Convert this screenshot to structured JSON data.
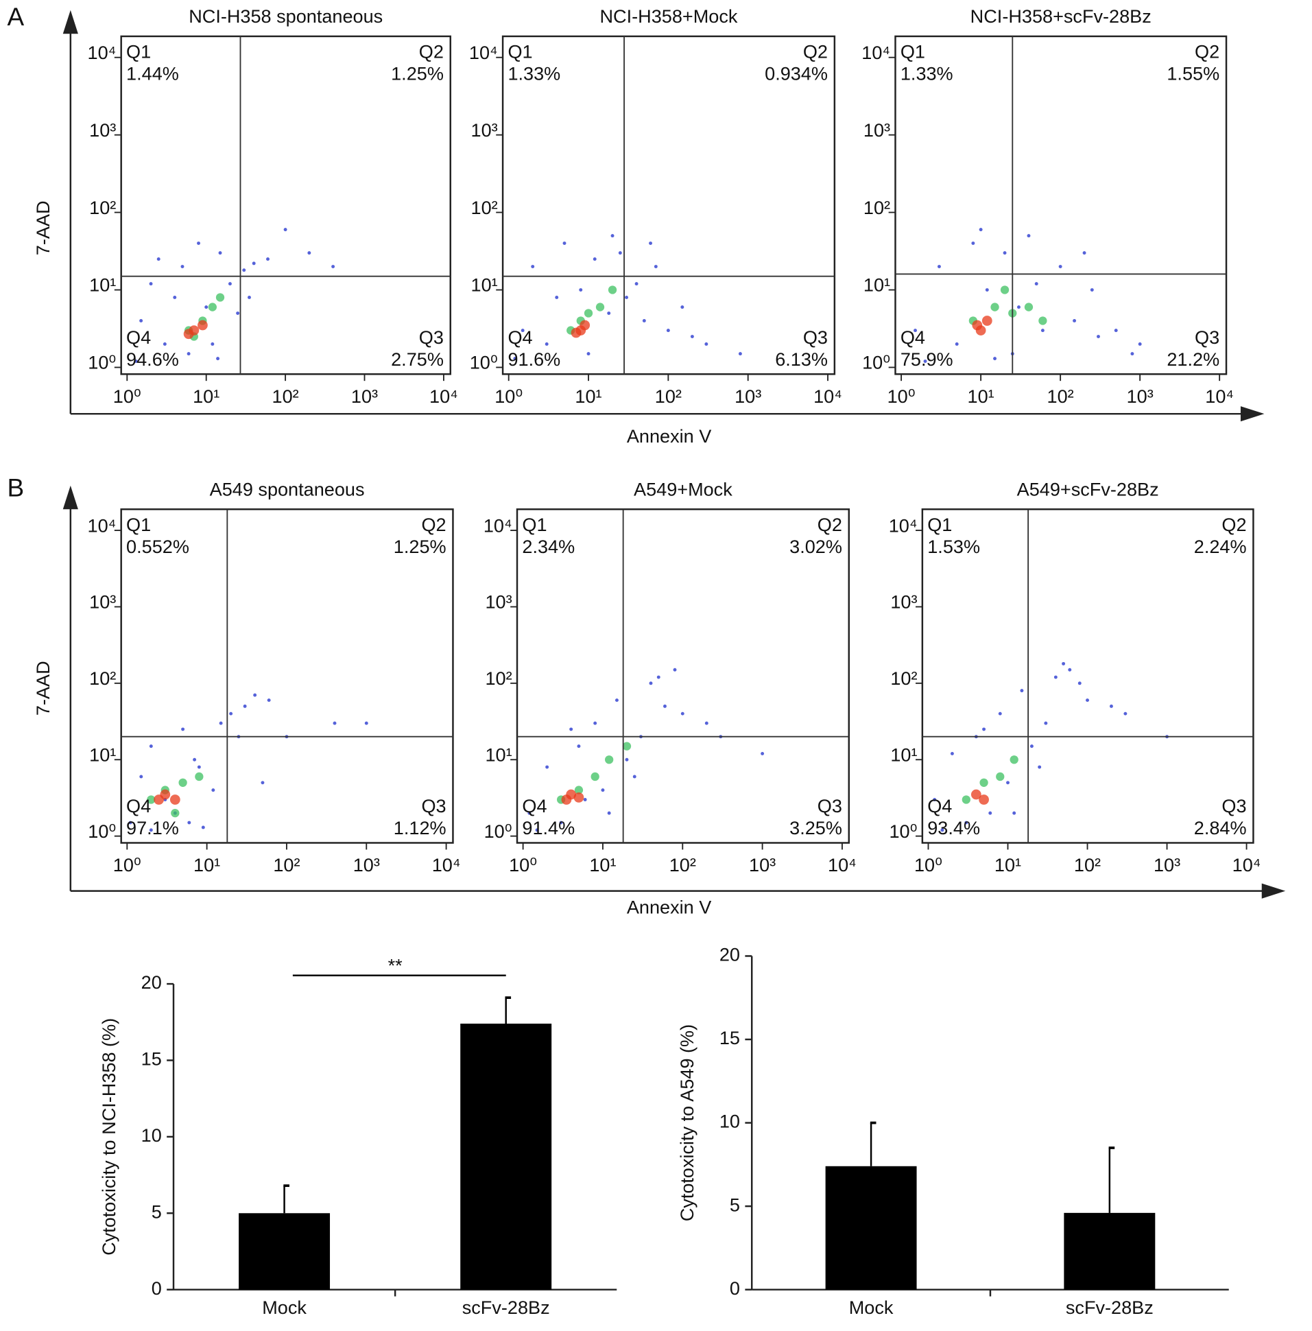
{
  "panels": [
    {
      "label": "A",
      "x_label": "Annexin V",
      "y_label": "7-AAD"
    },
    {
      "label": "B",
      "x_label": "Annexin V",
      "y_label": "7-AAD"
    }
  ],
  "chart_data": [
    {
      "type": "scatter",
      "title": "NCI-H358 spontaneous",
      "xscale": "log",
      "yscale": "log",
      "xlim": [
        1,
        10000
      ],
      "ylim": [
        1,
        10000
      ],
      "xticks": [
        {
          "value": 1,
          "label": "10⁰"
        },
        {
          "value": 10,
          "label": "10¹"
        },
        {
          "value": 100,
          "label": "10²"
        },
        {
          "value": 1000,
          "label": "10³"
        },
        {
          "value": 10000,
          "label": "10⁴"
        }
      ],
      "yticks": [
        {
          "value": 1,
          "label": "10⁰"
        },
        {
          "value": 10,
          "label": "10¹"
        },
        {
          "value": 100,
          "label": "10²"
        },
        {
          "value": 1000,
          "label": "10³"
        },
        {
          "value": 10000,
          "label": "10⁴"
        }
      ],
      "gate": {
        "x": 27,
        "y": 15
      },
      "quadrants": [
        "Q1",
        "Q2",
        "Q3",
        "Q4"
      ],
      "quadrant_values": [
        1.44,
        1.25,
        2.75,
        94.6
      ],
      "value_labels": [
        "1.44%",
        "1.25%",
        "2.75%",
        "94.6%"
      ],
      "series": [
        {
          "color": "#2a3bd0",
          "x": [
            1.5,
            2,
            3,
            4,
            5,
            6,
            8,
            10,
            12,
            15,
            20,
            25,
            30,
            40,
            60,
            100,
            200,
            400,
            1.3,
            2.5,
            14,
            35
          ],
          "values": [
            4,
            12,
            2,
            8,
            20,
            1.5,
            40,
            6,
            2,
            30,
            12,
            5,
            18,
            22,
            25,
            60,
            30,
            20,
            1.2,
            25,
            1.3,
            8
          ]
        },
        {
          "color": "#3cc060",
          "x": [
            6,
            9,
            12,
            15,
            7
          ],
          "values": [
            3,
            4,
            6,
            8,
            2.5
          ]
        },
        {
          "color": "#e83a1a",
          "x": [
            7,
            9,
            6
          ],
          "values": [
            3,
            3.5,
            2.7
          ]
        }
      ]
    },
    {
      "type": "scatter",
      "title": "NCI-H358+Mock",
      "xscale": "log",
      "yscale": "log",
      "xlim": [
        1,
        10000
      ],
      "ylim": [
        1,
        10000
      ],
      "xticks": [
        {
          "value": 1,
          "label": "10⁰"
        },
        {
          "value": 10,
          "label": "10¹"
        },
        {
          "value": 100,
          "label": "10²"
        },
        {
          "value": 1000,
          "label": "10³"
        },
        {
          "value": 10000,
          "label": "10⁴"
        }
      ],
      "yticks": [
        {
          "value": 1,
          "label": "10⁰"
        },
        {
          "value": 10,
          "label": "10¹"
        },
        {
          "value": 100,
          "label": "10²"
        },
        {
          "value": 1000,
          "label": "10³"
        },
        {
          "value": 10000,
          "label": "10⁴"
        }
      ],
      "gate": {
        "x": 28,
        "y": 15
      },
      "quadrants": [
        "Q1",
        "Q2",
        "Q3",
        "Q4"
      ],
      "quadrant_values": [
        1.33,
        0.934,
        6.13,
        91.6
      ],
      "value_labels": [
        "1.33%",
        "0.934%",
        "6.13%",
        "91.6%"
      ],
      "series": [
        {
          "color": "#2a3bd0",
          "x": [
            1.5,
            2,
            3,
            5,
            8,
            10,
            12,
            18,
            25,
            30,
            40,
            50,
            70,
            100,
            150,
            300,
            800,
            1.2,
            4,
            20,
            60,
            200
          ],
          "values": [
            3,
            20,
            2,
            40,
            10,
            1.5,
            25,
            5,
            30,
            8,
            12,
            4,
            20,
            3,
            6,
            2,
            1.5,
            1.3,
            8,
            50,
            40,
            2.5
          ]
        },
        {
          "color": "#3cc060",
          "x": [
            6,
            10,
            14,
            20,
            8
          ],
          "values": [
            3,
            5,
            6,
            10,
            4
          ]
        },
        {
          "color": "#e83a1a",
          "x": [
            8,
            9,
            7
          ],
          "values": [
            3,
            3.5,
            2.8
          ]
        }
      ]
    },
    {
      "type": "scatter",
      "title": "NCI-H358+scFv-28Bz",
      "xscale": "log",
      "yscale": "log",
      "xlim": [
        1,
        10000
      ],
      "ylim": [
        1,
        10000
      ],
      "xticks": [
        {
          "value": 1,
          "label": "10⁰"
        },
        {
          "value": 10,
          "label": "10¹"
        },
        {
          "value": 100,
          "label": "10²"
        },
        {
          "value": 1000,
          "label": "10³"
        },
        {
          "value": 10000,
          "label": "10⁴"
        }
      ],
      "yticks": [
        {
          "value": 1,
          "label": "10⁰"
        },
        {
          "value": 10,
          "label": "10¹"
        },
        {
          "value": 100,
          "label": "10²"
        },
        {
          "value": 1000,
          "label": "10³"
        },
        {
          "value": 10000,
          "label": "10⁴"
        }
      ],
      "gate": {
        "x": 25,
        "y": 16
      },
      "quadrants": [
        "Q1",
        "Q2",
        "Q3",
        "Q4"
      ],
      "quadrant_values": [
        1.33,
        1.55,
        21.2,
        75.9
      ],
      "value_labels": [
        "1.33%",
        "1.55%",
        "21.2%",
        "75.9%"
      ],
      "series": [
        {
          "color": "#2a3bd0",
          "x": [
            1.5,
            3,
            5,
            8,
            12,
            20,
            30,
            40,
            60,
            100,
            150,
            200,
            300,
            500,
            800,
            2,
            10,
            25,
            50,
            250,
            1000,
            15
          ],
          "values": [
            3,
            20,
            2,
            40,
            10,
            30,
            6,
            50,
            3,
            20,
            4,
            30,
            2.5,
            3,
            1.5,
            1.2,
            60,
            1.5,
            12,
            10,
            2,
            1.3
          ]
        },
        {
          "color": "#3cc060",
          "x": [
            8,
            15,
            25,
            40,
            60,
            20
          ],
          "values": [
            4,
            6,
            5,
            6,
            4,
            10
          ]
        },
        {
          "color": "#e83a1a",
          "x": [
            9,
            12,
            10
          ],
          "values": [
            3.5,
            4,
            3
          ]
        }
      ]
    },
    {
      "type": "scatter",
      "title": "A549 spontaneous",
      "xscale": "log",
      "yscale": "log",
      "xlim": [
        1,
        10000
      ],
      "ylim": [
        1,
        10000
      ],
      "xticks": [
        {
          "value": 1,
          "label": "10⁰"
        },
        {
          "value": 10,
          "label": "10¹"
        },
        {
          "value": 100,
          "label": "10²"
        },
        {
          "value": 1000,
          "label": "10³"
        },
        {
          "value": 10000,
          "label": "10⁴"
        }
      ],
      "yticks": [
        {
          "value": 1,
          "label": "10⁰"
        },
        {
          "value": 10,
          "label": "10¹"
        },
        {
          "value": 100,
          "label": "10²"
        },
        {
          "value": 1000,
          "label": "10³"
        },
        {
          "value": 10000,
          "label": "10⁴"
        }
      ],
      "gate": {
        "x": 18,
        "y": 20
      },
      "quadrants": [
        "Q1",
        "Q2",
        "Q3",
        "Q4"
      ],
      "quadrant_values": [
        0.552,
        1.25,
        1.12,
        97.1
      ],
      "value_labels": [
        "0.552%",
        "1.25%",
        "1.12%",
        "97.1%"
      ],
      "series": [
        {
          "color": "#2a3bd0",
          "x": [
            1.1,
            1.5,
            2,
            3,
            4,
            5,
            7,
            9,
            12,
            15,
            20,
            30,
            40,
            60,
            100,
            400,
            1000,
            2,
            8,
            25,
            50,
            6
          ],
          "values": [
            1.5,
            6,
            15,
            3,
            2,
            25,
            10,
            1.3,
            4,
            30,
            40,
            50,
            70,
            60,
            20,
            30,
            30,
            1.2,
            8,
            20,
            5,
            1.5
          ]
        },
        {
          "color": "#3cc060",
          "x": [
            2,
            3,
            5,
            8,
            4
          ],
          "values": [
            3,
            4,
            5,
            6,
            2
          ]
        },
        {
          "color": "#e83a1a",
          "x": [
            3,
            4,
            2.5
          ],
          "values": [
            3.5,
            3,
            3
          ]
        }
      ]
    },
    {
      "type": "scatter",
      "title": "A549+Mock",
      "xscale": "log",
      "yscale": "log",
      "xlim": [
        1,
        10000
      ],
      "ylim": [
        1,
        10000
      ],
      "xticks": [
        {
          "value": 1,
          "label": "10⁰"
        },
        {
          "value": 10,
          "label": "10¹"
        },
        {
          "value": 100,
          "label": "10²"
        },
        {
          "value": 1000,
          "label": "10³"
        },
        {
          "value": 10000,
          "label": "10⁴"
        }
      ],
      "yticks": [
        {
          "value": 1,
          "label": "10⁰"
        },
        {
          "value": 10,
          "label": "10¹"
        },
        {
          "value": 100,
          "label": "10²"
        },
        {
          "value": 1000,
          "label": "10³"
        },
        {
          "value": 10000,
          "label": "10⁴"
        }
      ],
      "gate": {
        "x": 18,
        "y": 20
      },
      "quadrants": [
        "Q1",
        "Q2",
        "Q3",
        "Q4"
      ],
      "quadrant_values": [
        2.34,
        3.02,
        3.25,
        91.4
      ],
      "value_labels": [
        "2.34%",
        "3.02%",
        "3.25%",
        "91.4%"
      ],
      "series": [
        {
          "color": "#2a3bd0",
          "x": [
            1.2,
            2,
            3,
            5,
            8,
            10,
            15,
            20,
            30,
            40,
            60,
            80,
            100,
            200,
            300,
            1000,
            1.5,
            6,
            25,
            50,
            12,
            4
          ],
          "values": [
            2,
            8,
            1.5,
            15,
            30,
            4,
            60,
            10,
            20,
            100,
            50,
            150,
            40,
            30,
            20,
            12,
            1.2,
            3,
            6,
            120,
            2,
            25
          ]
        },
        {
          "color": "#3cc060",
          "x": [
            3,
            5,
            8,
            12,
            20
          ],
          "values": [
            3,
            4,
            6,
            10,
            15
          ]
        },
        {
          "color": "#e83a1a",
          "x": [
            4,
            5,
            3.5
          ],
          "values": [
            3.5,
            3.2,
            3
          ]
        }
      ]
    },
    {
      "type": "scatter",
      "title": "A549+scFv-28Bz",
      "xscale": "log",
      "yscale": "log",
      "xlim": [
        1,
        10000
      ],
      "ylim": [
        1,
        10000
      ],
      "xticks": [
        {
          "value": 1,
          "label": "10⁰"
        },
        {
          "value": 10,
          "label": "10¹"
        },
        {
          "value": 100,
          "label": "10²"
        },
        {
          "value": 1000,
          "label": "10³"
        },
        {
          "value": 10000,
          "label": "10⁴"
        }
      ],
      "yticks": [
        {
          "value": 1,
          "label": "10⁰"
        },
        {
          "value": 10,
          "label": "10¹"
        },
        {
          "value": 100,
          "label": "10²"
        },
        {
          "value": 1000,
          "label": "10³"
        },
        {
          "value": 10000,
          "label": "10⁴"
        }
      ],
      "gate": {
        "x": 18,
        "y": 20
      },
      "quadrants": [
        "Q1",
        "Q2",
        "Q3",
        "Q4"
      ],
      "quadrant_values": [
        1.53,
        2.24,
        2.84,
        93.4
      ],
      "value_labels": [
        "1.53%",
        "2.24%",
        "2.84%",
        "93.4%"
      ],
      "series": [
        {
          "color": "#2a3bd0",
          "x": [
            1.2,
            2,
            3,
            5,
            8,
            10,
            15,
            20,
            30,
            40,
            60,
            80,
            100,
            200,
            300,
            1000,
            1.5,
            6,
            25,
            50,
            12,
            4
          ],
          "values": [
            3,
            12,
            1.5,
            25,
            40,
            5,
            80,
            15,
            30,
            120,
            150,
            100,
            60,
            50,
            40,
            20,
            1.2,
            2,
            8,
            180,
            2,
            20
          ]
        },
        {
          "color": "#3cc060",
          "x": [
            3,
            5,
            8,
            12
          ],
          "values": [
            3,
            5,
            6,
            10
          ]
        },
        {
          "color": "#e83a1a",
          "x": [
            4,
            5
          ],
          "values": [
            3.5,
            3
          ]
        }
      ]
    },
    {
      "type": "bar",
      "y_label": "Cytotoxicity to NCI-H358 (%)",
      "categories": [
        "Mock",
        "scFv-28Bz"
      ],
      "values": [
        5.0,
        17.4
      ],
      "errors": [
        1.8,
        1.7
      ],
      "color": "#000000",
      "ylim": [
        0,
        20
      ],
      "yticks": [
        0,
        5,
        10,
        15,
        20
      ],
      "annotations": [
        "**"
      ]
    },
    {
      "type": "bar",
      "y_label": "Cytotoxicity to A549 (%)",
      "categories": [
        "Mock",
        "scFv-28Bz"
      ],
      "values": [
        7.4,
        4.6
      ],
      "errors": [
        2.6,
        3.9
      ],
      "color": "#000000",
      "ylim": [
        0,
        20
      ],
      "yticks": [
        0,
        5,
        10,
        15,
        20
      ]
    }
  ]
}
